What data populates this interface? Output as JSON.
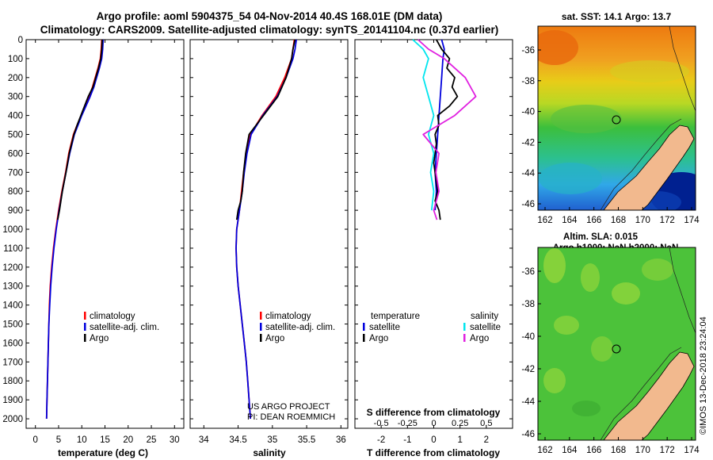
{
  "header": {
    "line1": "Argo profile: aoml 5904375_54 04-Nov-2014 40.4S 168.01E (DM data)",
    "line2": "Climatology: CARS2009. Satellite-adjusted climatology: synTS_20141104.nc (0.37d earlier)"
  },
  "colors": {
    "climatology": "#ff0000",
    "satellite": "#0000dd",
    "argo": "#000000",
    "sal_satellite": "#00e5ee",
    "sal_argo": "#e020e0",
    "land": "#f2b98e"
  },
  "chart_data": [
    {
      "type": "line",
      "name": "temperature-profile",
      "xlabel": "temperature (deg C)",
      "ylabel": "",
      "xlim": [
        -2,
        32
      ],
      "ylim": [
        2050,
        0
      ],
      "xticks": [
        "0",
        "5",
        "10",
        "15",
        "20",
        "25",
        "30"
      ],
      "yticks": [
        "0",
        "100",
        "200",
        "300",
        "400",
        "500",
        "600",
        "700",
        "800",
        "900",
        "1000",
        "1100",
        "1200",
        "1300",
        "1400",
        "1500",
        "1600",
        "1700",
        "1800",
        "1900",
        "2000"
      ],
      "legend": [
        "climatology",
        "satellite-adj. clim.",
        "Argo"
      ],
      "series": [
        {
          "name": "climatology",
          "depth": [
            0,
            50,
            100,
            150,
            200,
            250,
            300,
            350,
            400,
            450,
            500,
            600,
            700,
            800,
            900,
            1000,
            1100,
            1200,
            1300,
            1400,
            1500,
            1600,
            1700,
            1800,
            1900,
            2000
          ],
          "values": [
            14.3,
            14.2,
            14.0,
            13.5,
            12.9,
            12.3,
            11.6,
            10.8,
            9.9,
            9.0,
            8.2,
            7.2,
            6.5,
            5.7,
            5.0,
            4.4,
            3.9,
            3.5,
            3.2,
            3.0,
            2.9,
            2.8,
            2.7,
            2.6,
            2.5,
            2.4
          ]
        },
        {
          "name": "satellite-adj. clim.",
          "depth": [
            0,
            50,
            100,
            150,
            200,
            250,
            300,
            350,
            400,
            450,
            500,
            600,
            700,
            800,
            900,
            1000,
            1100,
            1200,
            1300,
            1400,
            1500,
            1600,
            1700,
            1800,
            1900,
            2000
          ],
          "values": [
            14.6,
            14.5,
            14.3,
            13.8,
            13.2,
            12.6,
            11.8,
            10.9,
            10.0,
            9.2,
            8.4,
            7.4,
            6.6,
            5.8,
            5.1,
            4.5,
            4.0,
            3.6,
            3.3,
            3.1,
            2.9,
            2.8,
            2.7,
            2.6,
            2.5,
            2.4
          ]
        },
        {
          "name": "Argo",
          "depth": [
            0,
            50,
            100,
            150,
            200,
            250,
            300,
            350,
            400,
            450,
            500,
            600,
            700,
            800,
            900,
            950
          ],
          "values": [
            14.4,
            14.3,
            14.1,
            13.6,
            13.0,
            12.4,
            11.4,
            10.6,
            9.8,
            9.0,
            8.3,
            7.3,
            6.6,
            5.8,
            5.2,
            4.8
          ]
        }
      ]
    },
    {
      "type": "line",
      "name": "salinity-profile",
      "xlabel": "salinity",
      "xlim": [
        33.8,
        36.1
      ],
      "ylim": [
        2050,
        0
      ],
      "xticks": [
        "34",
        "34.5",
        "35",
        "35.5",
        "36"
      ],
      "legend": [
        "climatology",
        "satellite-adj. clim.",
        "Argo"
      ],
      "annotation": [
        "US ARGO PROJECT",
        "PI: DEAN ROEMMICH"
      ],
      "series": [
        {
          "name": "climatology",
          "depth": [
            0,
            50,
            100,
            200,
            300,
            400,
            500,
            600,
            700,
            800,
            900,
            1000,
            1100,
            1200,
            1300,
            1400,
            1500,
            1600,
            1700,
            1800,
            1900,
            2000
          ],
          "values": [
            35.32,
            35.3,
            35.28,
            35.18,
            35.05,
            34.85,
            34.68,
            34.62,
            34.58,
            34.55,
            34.52,
            34.48,
            34.47,
            34.48,
            34.5,
            34.53,
            34.56,
            34.59,
            34.62,
            34.64,
            34.66,
            34.68
          ]
        },
        {
          "name": "satellite-adj. clim.",
          "depth": [
            0,
            50,
            100,
            200,
            300,
            400,
            500,
            600,
            700,
            800,
            900,
            1000,
            1100,
            1200,
            1300,
            1400,
            1500,
            1600,
            1700,
            1800,
            1900,
            2000
          ],
          "values": [
            35.35,
            35.33,
            35.3,
            35.2,
            35.07,
            34.86,
            34.69,
            34.63,
            34.59,
            34.56,
            34.52,
            34.48,
            34.47,
            34.48,
            34.5,
            34.53,
            34.56,
            34.59,
            34.62,
            34.64,
            34.66,
            34.68
          ]
        },
        {
          "name": "Argo",
          "depth": [
            0,
            50,
            100,
            200,
            300,
            400,
            500,
            600,
            700,
            800,
            850,
            900,
            950
          ],
          "values": [
            35.33,
            35.3,
            35.28,
            35.2,
            35.08,
            34.87,
            34.66,
            34.61,
            34.58,
            34.56,
            34.54,
            34.5,
            34.48
          ]
        }
      ]
    },
    {
      "type": "line",
      "name": "difference-profile",
      "xlabel": "T difference from climatology",
      "xlabel2": "S difference from climatology",
      "xlim": [
        -3,
        3
      ],
      "ylim": [
        2050,
        0
      ],
      "xticks": [
        "-2",
        "-1",
        "0",
        "1",
        "2"
      ],
      "xticks2": [
        "-0.5",
        "-0.25",
        "0",
        "0.25",
        "0.5"
      ],
      "legend_left_title": "temperature",
      "legend_right_title": "salinity",
      "legend_left": [
        "satellite",
        "Argo"
      ],
      "legend_right": [
        "satellite",
        "Argo"
      ],
      "series": [
        {
          "name": "T satellite",
          "depth": [
            0,
            50,
            100,
            200,
            300,
            400,
            500,
            600,
            700,
            800,
            900
          ],
          "values": [
            0.3,
            0.4,
            0.35,
            0.3,
            0.25,
            0.2,
            0.15,
            0.1,
            0.05,
            0.1,
            0.05
          ]
        },
        {
          "name": "T Argo",
          "depth": [
            0,
            50,
            100,
            150,
            200,
            250,
            300,
            350,
            400,
            450,
            500,
            550,
            600,
            650,
            700,
            750,
            800,
            850,
            900,
            950
          ],
          "values": [
            0.1,
            0.3,
            0.6,
            0.5,
            0.8,
            0.7,
            0.9,
            0.6,
            0.15,
            0.2,
            0.05,
            0.1,
            0.05,
            0.0,
            0.05,
            0.1,
            0.15,
            0.05,
            0.2,
            0.25
          ]
        },
        {
          "name": "S satellite",
          "depth": [
            0,
            50,
            100,
            200,
            300,
            400,
            500,
            600,
            700,
            800,
            900
          ],
          "values": [
            -0.2,
            -0.1,
            -0.05,
            -0.1,
            -0.05,
            0.0,
            -0.05,
            0.0,
            -0.03,
            0.0,
            -0.02
          ]
        },
        {
          "name": "S Argo",
          "depth": [
            0,
            50,
            100,
            200,
            300,
            400,
            500,
            600,
            700,
            800,
            900,
            950
          ],
          "values": [
            -0.15,
            -0.05,
            0.1,
            0.3,
            0.4,
            0.2,
            -0.1,
            0.05,
            0.02,
            0.05,
            0.0,
            0.03
          ]
        }
      ]
    }
  ],
  "maps": {
    "sst": {
      "title": "sat. SST: 14.1 Argo: 13.7",
      "lat_ticks": [
        "-36",
        "-38",
        "-40",
        "-42",
        "-44",
        "-46"
      ],
      "lon_ticks": [
        "162",
        "164",
        "166",
        "168",
        "170",
        "172",
        "174"
      ]
    },
    "sla": {
      "title1": "Altim. SLA: 0.015",
      "title2": "Argo h1000: NaN h2000: NaN",
      "lat_ticks": [
        "-36",
        "-38",
        "-40",
        "-42",
        "-44",
        "-46"
      ],
      "lon_ticks": [
        "162",
        "164",
        "166",
        "168",
        "170",
        "172",
        "174"
      ]
    },
    "credit": "©IMOS 13-Dec-2018 23:24:04"
  }
}
